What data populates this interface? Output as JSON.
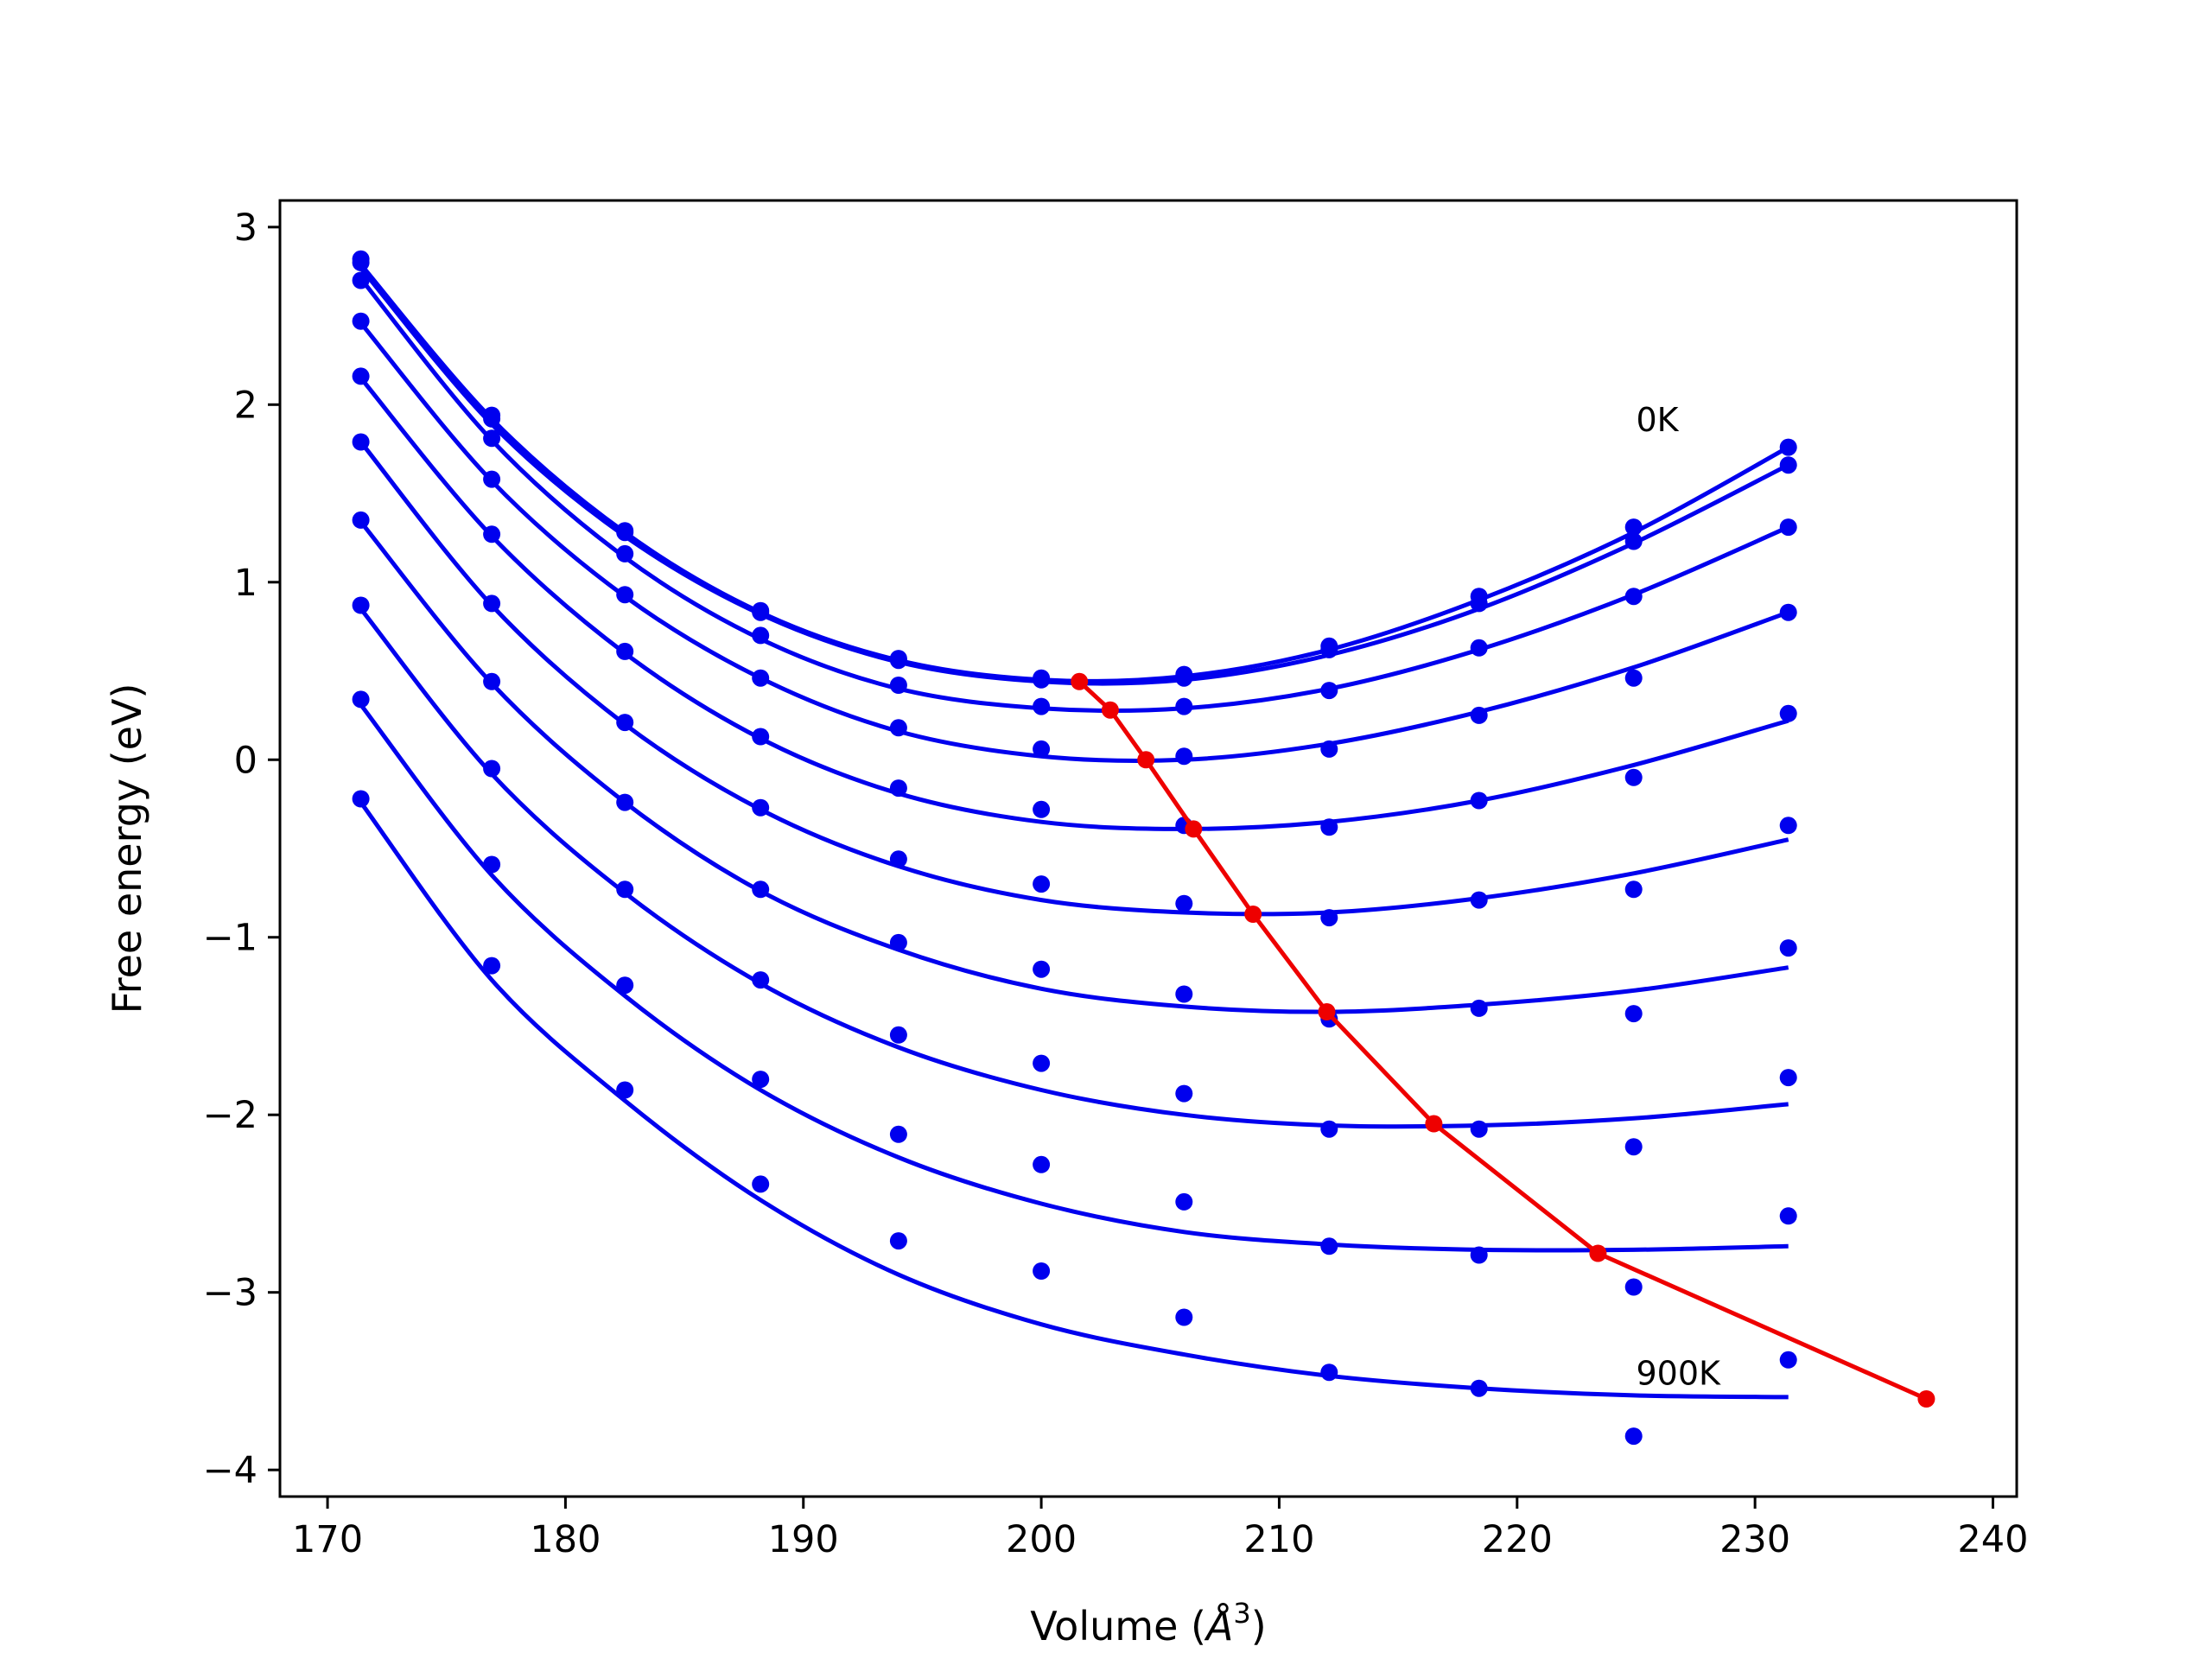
{
  "chart_data": {
    "type": "line",
    "xlabel_prefix": "Volume (",
    "xlabel_symbol": "Å",
    "xlabel_exp": "3",
    "xlabel_suffix": ")",
    "ylabel": "Free energy (eV)",
    "xlim": [
      168,
      241
    ],
    "ylim": [
      -4.15,
      3.15
    ],
    "xticks": [
      170,
      180,
      190,
      200,
      210,
      220,
      230,
      240
    ],
    "yticks": [
      -4,
      -3,
      -2,
      -1,
      0,
      1,
      2,
      3
    ],
    "grid": false,
    "colors": {
      "curves": "#0000ee",
      "points": "#0000ee",
      "minimum_line": "#ee0000"
    },
    "annotations": [
      {
        "text": "0K",
        "x": 225,
        "y": 1.85
      },
      {
        "text": "900K",
        "x": 225,
        "y": -3.52
      }
    ],
    "volumes": [
      171.4,
      176.9,
      182.5,
      188.2,
      194.0,
      200.0,
      206.0,
      212.1,
      218.4,
      224.9,
      231.4
    ],
    "series": [
      {
        "label": "0K",
        "points": [
          2.82,
          1.94,
          1.29,
          0.84,
          0.57,
          0.46,
          0.48,
          0.64,
          0.92,
          1.31,
          1.76
        ],
        "fit": [
          2.79,
          1.92,
          1.28,
          0.83,
          0.56,
          0.45,
          0.47,
          0.62,
          0.9,
          1.28,
          1.76
        ]
      },
      {
        "label": "",
        "points": [
          2.8,
          1.92,
          1.28,
          0.83,
          0.56,
          0.45,
          0.46,
          0.62,
          0.88,
          1.23,
          1.66
        ],
        "fit": [
          2.77,
          1.89,
          1.26,
          0.82,
          0.55,
          0.44,
          0.45,
          0.59,
          0.85,
          1.22,
          1.66
        ]
      },
      {
        "label": "",
        "points": [
          2.7,
          1.81,
          1.16,
          0.7,
          0.42,
          0.3,
          0.3,
          0.39,
          0.63,
          0.92,
          1.31
        ],
        "fit": [
          2.71,
          1.8,
          1.14,
          0.68,
          0.4,
          0.29,
          0.29,
          0.4,
          0.62,
          0.93,
          1.31
        ]
      },
      {
        "label": "",
        "points": [
          2.47,
          1.58,
          0.93,
          0.46,
          0.18,
          0.06,
          0.02,
          0.06,
          0.25,
          0.46,
          0.83
        ],
        "fit": [
          2.46,
          1.57,
          0.92,
          0.46,
          0.16,
          0.02,
          0.0,
          0.09,
          0.27,
          0.52,
          0.83
        ]
      },
      {
        "label": "",
        "points": [
          2.16,
          1.27,
          0.61,
          0.13,
          -0.16,
          -0.28,
          -0.37,
          -0.38,
          -0.23,
          -0.1,
          0.26
        ],
        "fit": [
          2.15,
          1.26,
          0.6,
          0.12,
          -0.19,
          -0.35,
          -0.39,
          -0.35,
          -0.23,
          -0.03,
          0.22
        ]
      },
      {
        "label": "",
        "points": [
          1.79,
          0.88,
          0.21,
          -0.27,
          -0.56,
          -0.7,
          -0.81,
          -0.89,
          -0.79,
          -0.73,
          -0.37
        ],
        "fit": [
          1.79,
          0.87,
          0.2,
          -0.28,
          -0.6,
          -0.79,
          -0.86,
          -0.86,
          -0.78,
          -0.64,
          -0.45
        ]
      },
      {
        "label": "",
        "points": [
          1.35,
          0.44,
          -0.24,
          -0.73,
          -1.03,
          -1.18,
          -1.32,
          -1.46,
          -1.4,
          -1.43,
          -1.06
        ],
        "fit": [
          1.34,
          0.43,
          -0.24,
          -0.74,
          -1.07,
          -1.29,
          -1.39,
          -1.42,
          -1.38,
          -1.3,
          -1.17
        ]
      },
      {
        "label": "",
        "points": [
          0.87,
          -0.05,
          -0.73,
          -1.24,
          -1.55,
          -1.71,
          -1.88,
          -2.08,
          -2.08,
          -2.18,
          -1.79
        ],
        "fit": [
          0.85,
          -0.08,
          -0.75,
          -1.26,
          -1.62,
          -1.86,
          -2.0,
          -2.06,
          -2.06,
          -2.02,
          -1.94
        ]
      },
      {
        "label": "",
        "points": [
          0.34,
          -0.59,
          -1.27,
          -1.8,
          -2.11,
          -2.28,
          -2.49,
          -2.74,
          -2.79,
          -2.97,
          -2.57
        ],
        "fit": [
          0.31,
          -0.65,
          -1.33,
          -1.86,
          -2.24,
          -2.5,
          -2.66,
          -2.73,
          -2.76,
          -2.76,
          -2.74
        ]
      },
      {
        "label": "900K",
        "points": [
          -0.22,
          -1.16,
          -1.86,
          -2.39,
          -2.71,
          -2.88,
          -3.14,
          -3.45,
          -3.54,
          -3.81,
          -3.38
        ],
        "fit": [
          -0.24,
          -1.24,
          -1.92,
          -2.48,
          -2.9,
          -3.18,
          -3.35,
          -3.47,
          -3.54,
          -3.58,
          -3.59
        ]
      }
    ],
    "minimum_line": {
      "x": [
        201.6,
        202.9,
        204.4,
        206.4,
        208.9,
        212.0,
        216.5,
        223.4,
        237.2
      ],
      "y": [
        0.44,
        0.28,
        0.0,
        -0.39,
        -0.87,
        -1.42,
        -2.05,
        -2.78,
        -3.6
      ]
    }
  }
}
